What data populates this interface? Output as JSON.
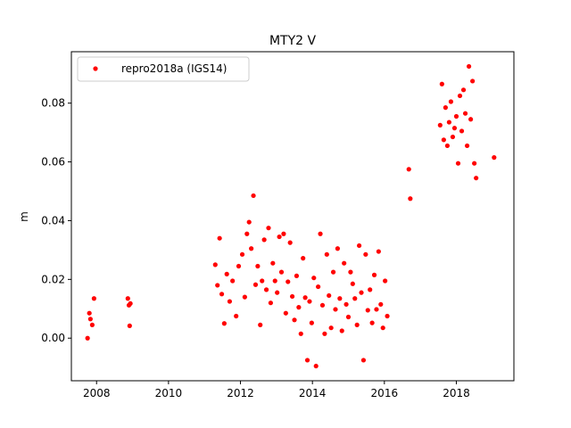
{
  "chart_data": {
    "type": "scatter",
    "title": "MTY2 V",
    "xlabel": "",
    "ylabel": "m",
    "xlim": [
      2007.3,
      2019.6
    ],
    "ylim": [
      -0.0145,
      0.0975
    ],
    "xticks": [
      2008,
      2010,
      2012,
      2014,
      2016,
      2018
    ],
    "xtick_labels": [
      "2008",
      "2010",
      "2012",
      "2014",
      "2016",
      "2018"
    ],
    "yticks": [
      0.0,
      0.02,
      0.04,
      0.06,
      0.08
    ],
    "ytick_labels": [
      "0.00",
      "0.02",
      "0.04",
      "0.06",
      "0.08"
    ],
    "grid": false,
    "legend_position": "top-left",
    "series": [
      {
        "name": "repro2018a (IGS14)",
        "color": "#ff0000",
        "marker": "circle",
        "x": [
          2007.75,
          2007.8,
          2007.83,
          2007.88,
          2007.93,
          2008.87,
          2008.9,
          2008.92,
          2008.94,
          2011.3,
          2011.36,
          2011.42,
          2011.48,
          2011.55,
          2011.62,
          2011.7,
          2011.78,
          2011.88,
          2011.95,
          2012.05,
          2012.12,
          2012.18,
          2012.24,
          2012.3,
          2012.36,
          2012.42,
          2012.48,
          2012.55,
          2012.6,
          2012.66,
          2012.72,
          2012.78,
          2012.84,
          2012.9,
          2012.96,
          2013.02,
          2013.08,
          2013.14,
          2013.2,
          2013.26,
          2013.32,
          2013.38,
          2013.44,
          2013.5,
          2013.56,
          2013.62,
          2013.68,
          2013.74,
          2013.8,
          2013.86,
          2013.92,
          2013.98,
          2014.04,
          2014.1,
          2014.16,
          2014.22,
          2014.28,
          2014.34,
          2014.4,
          2014.46,
          2014.52,
          2014.58,
          2014.64,
          2014.7,
          2014.76,
          2014.82,
          2014.88,
          2014.94,
          2015.0,
          2015.06,
          2015.12,
          2015.18,
          2015.24,
          2015.3,
          2015.36,
          2015.42,
          2015.48,
          2015.54,
          2015.6,
          2015.66,
          2015.72,
          2015.78,
          2015.84,
          2015.9,
          2015.96,
          2016.02,
          2016.08,
          2016.68,
          2016.72,
          2017.55,
          2017.6,
          2017.65,
          2017.7,
          2017.75,
          2017.8,
          2017.85,
          2017.9,
          2017.95,
          2018.0,
          2018.05,
          2018.1,
          2018.15,
          2018.2,
          2018.25,
          2018.3,
          2018.35,
          2018.4,
          2018.45,
          2018.5,
          2018.55,
          2019.05
        ],
        "y": [
          0.0,
          0.0085,
          0.0065,
          0.0045,
          0.0135,
          0.0135,
          0.0112,
          0.0042,
          0.0118,
          0.025,
          0.018,
          0.034,
          0.015,
          0.005,
          0.0218,
          0.0125,
          0.0195,
          0.0075,
          0.0245,
          0.0285,
          0.014,
          0.0355,
          0.0395,
          0.0305,
          0.0485,
          0.0182,
          0.0245,
          0.0045,
          0.0195,
          0.0335,
          0.0165,
          0.0375,
          0.012,
          0.0255,
          0.0195,
          0.0155,
          0.0345,
          0.0225,
          0.0355,
          0.0085,
          0.0192,
          0.0325,
          0.0142,
          0.0062,
          0.0212,
          0.0105,
          0.0015,
          0.0272,
          0.0138,
          -0.0075,
          0.0125,
          0.0052,
          0.0205,
          -0.0095,
          0.0175,
          0.0355,
          0.0112,
          0.0015,
          0.0285,
          0.0145,
          0.0035,
          0.0225,
          0.0098,
          0.0305,
          0.0135,
          0.0025,
          0.0255,
          0.0115,
          0.0072,
          0.0225,
          0.0185,
          0.0135,
          0.0045,
          0.0315,
          0.0155,
          -0.0075,
          0.0285,
          0.0095,
          0.0165,
          0.0052,
          0.0215,
          0.0098,
          0.0295,
          0.0115,
          0.0035,
          0.0195,
          0.0075,
          0.0575,
          0.0475,
          0.0725,
          0.0865,
          0.0675,
          0.0785,
          0.0655,
          0.0735,
          0.0805,
          0.0685,
          0.0715,
          0.0755,
          0.0595,
          0.0825,
          0.0705,
          0.0845,
          0.0765,
          0.0655,
          0.0925,
          0.0745,
          0.0875,
          0.0595,
          0.0545,
          0.0615
        ]
      }
    ]
  }
}
